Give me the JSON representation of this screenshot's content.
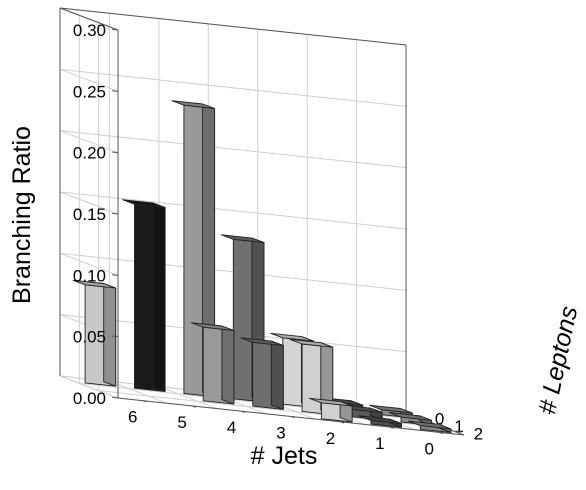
{
  "chart_data": {
    "type": "bar3d",
    "title": "",
    "zlabel": "Branching Ratio",
    "xlabel": "# Jets",
    "ylabel": "# Leptons",
    "x_ticks": [
      "6",
      "5",
      "4",
      "3",
      "2",
      "1",
      "0"
    ],
    "y_ticks": [
      "0",
      "1",
      "2"
    ],
    "z_ticks": [
      "0.00",
      "0.05",
      "0.10",
      "0.15",
      "0.20",
      "0.25",
      "0.30"
    ],
    "zlim": [
      0,
      0.3
    ],
    "grid": true,
    "bars": [
      {
        "jets": 6,
        "leptons": 0,
        "value": 0.08,
        "color": "#c8c8c8"
      },
      {
        "jets": 5,
        "leptons": 0,
        "value": 0.15,
        "color": "#1a1a1a"
      },
      {
        "jets": 4,
        "leptons": 0,
        "value": 0.235,
        "color": "#999999"
      },
      {
        "jets": 3,
        "leptons": 0,
        "value": 0.13,
        "color": "#707070"
      },
      {
        "jets": 2,
        "leptons": 0,
        "value": 0.054,
        "color": "#d4d4d4"
      },
      {
        "jets": 1,
        "leptons": 0,
        "value": 0.006,
        "color": "#555555"
      },
      {
        "jets": 0,
        "leptons": 0,
        "value": 0.004,
        "color": "#8c8c8c"
      },
      {
        "jets": 4,
        "leptons": 1,
        "value": 0.06,
        "color": "#9a9a9a"
      },
      {
        "jets": 3,
        "leptons": 1,
        "value": 0.052,
        "color": "#6e6e6e"
      },
      {
        "jets": 2,
        "leptons": 1,
        "value": 0.055,
        "color": "#d0d0d0"
      },
      {
        "jets": 1,
        "leptons": 1,
        "value": 0.006,
        "color": "#5a5a5a"
      },
      {
        "jets": 0,
        "leptons": 1,
        "value": 0.004,
        "color": "#8c8c8c"
      },
      {
        "jets": 2,
        "leptons": 2,
        "value": 0.013,
        "color": "#d0d0d0"
      },
      {
        "jets": 1,
        "leptons": 2,
        "value": 0.003,
        "color": "#505050"
      },
      {
        "jets": 0,
        "leptons": 2,
        "value": 0.003,
        "color": "#888888"
      }
    ]
  }
}
